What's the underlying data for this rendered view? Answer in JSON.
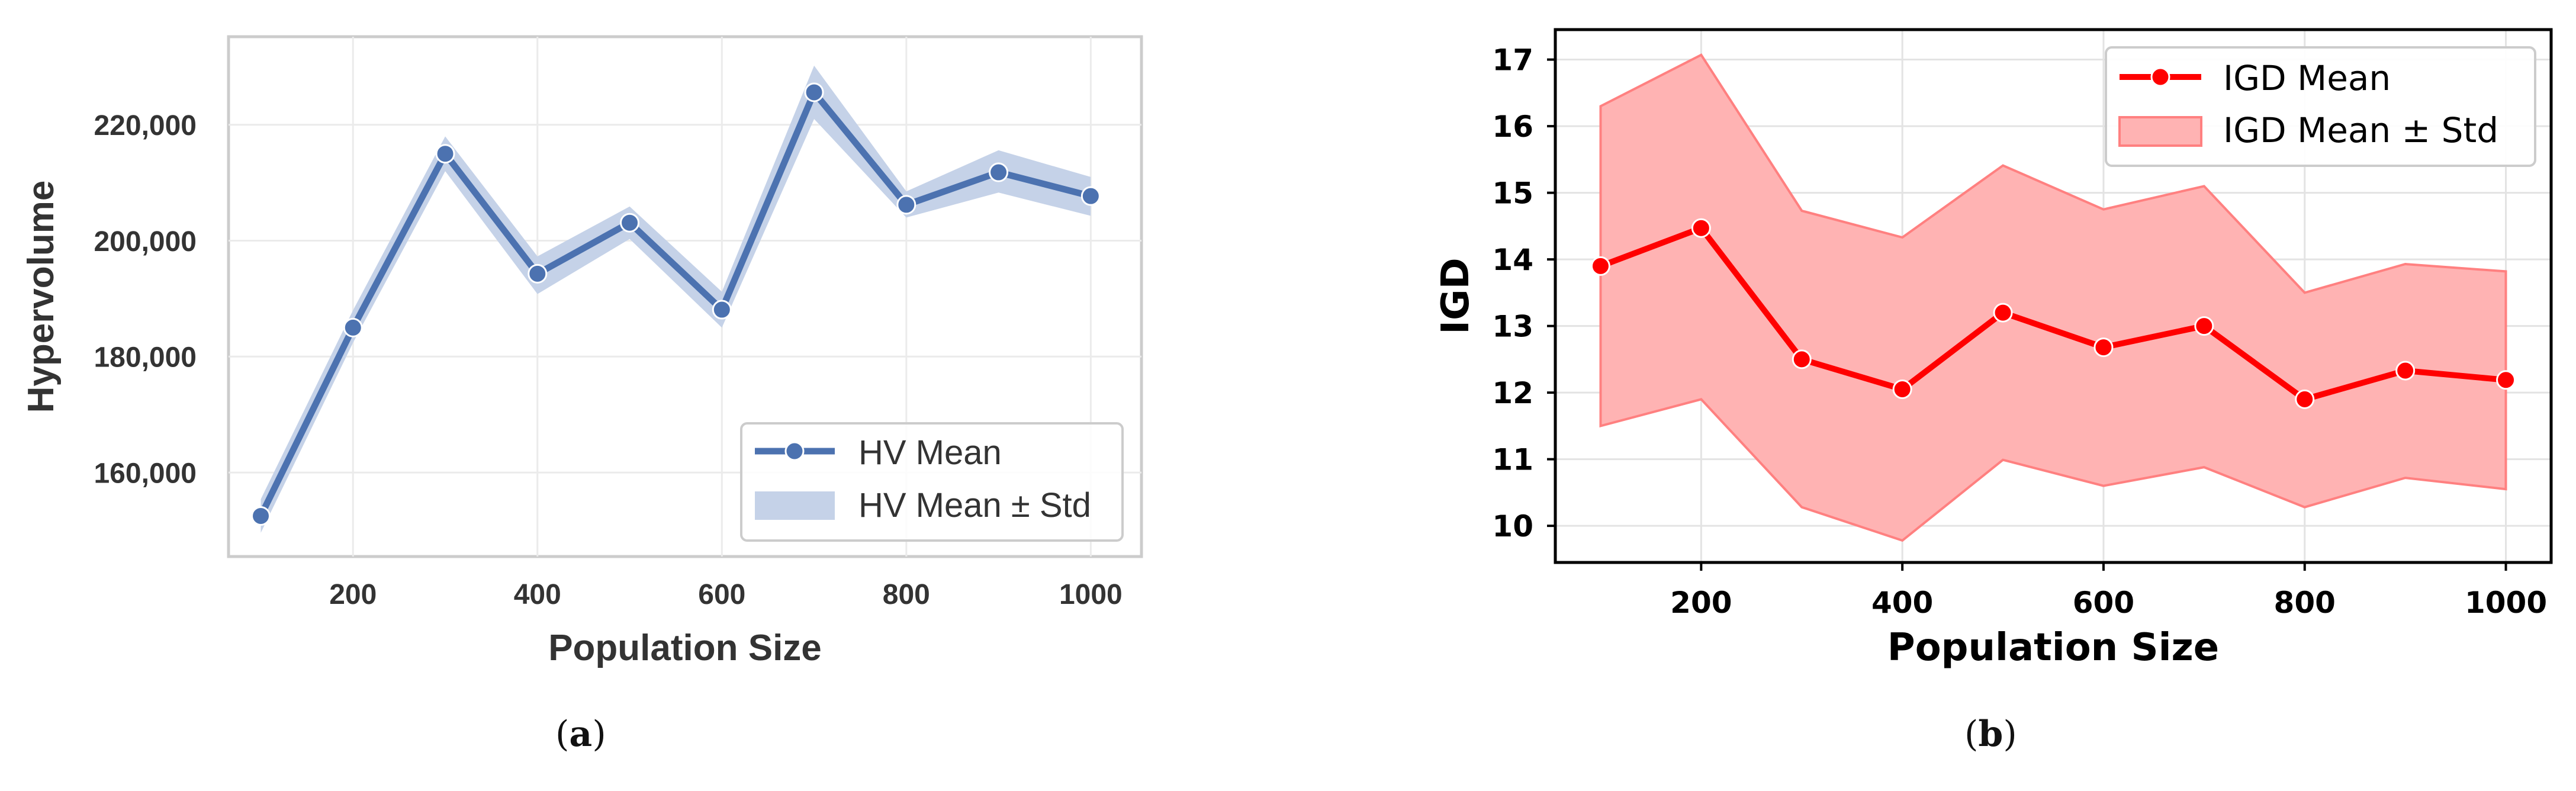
{
  "chart_data": [
    {
      "type": "line",
      "caption": "(a)",
      "xlabel": "Population Size",
      "ylabel": "Hypervolume",
      "x": [
        100,
        200,
        300,
        400,
        500,
        600,
        700,
        800,
        900,
        1000
      ],
      "xticks": [
        200,
        400,
        600,
        800,
        1000
      ],
      "xtick_labels": [
        "200",
        "400",
        "600",
        "800",
        "1000"
      ],
      "xlim": [
        65,
        1055
      ],
      "ylim": [
        145500,
        235200
      ],
      "yticks": [
        160000,
        180000,
        200000,
        220000
      ],
      "ytick_labels": [
        "160,000",
        "180,000",
        "200,000",
        "220,000"
      ],
      "grid": true,
      "legend_position": "lower-right",
      "series": [
        {
          "name": "HV Mean",
          "values": [
            152500,
            185000,
            215000,
            194300,
            203100,
            188100,
            225600,
            206200,
            211800,
            207700
          ],
          "color": "#4c72b0",
          "band_name": "HV Mean ± Std",
          "band_lower": [
            149600,
            182400,
            212000,
            190800,
            200300,
            185000,
            221000,
            204000,
            208300,
            204300
          ],
          "band_upper": [
            155400,
            188000,
            218000,
            197300,
            205900,
            191200,
            230200,
            208500,
            215600,
            211000
          ],
          "band_color": "#c5d2e8"
        }
      ]
    },
    {
      "type": "line",
      "caption": "(b)",
      "xlabel": "Population Size",
      "ylabel": "IGD",
      "x": [
        100,
        200,
        300,
        400,
        500,
        600,
        700,
        800,
        900,
        1000
      ],
      "xticks": [
        200,
        400,
        600,
        800,
        1000
      ],
      "xtick_labels": [
        "200",
        "400",
        "600",
        "800",
        "1000"
      ],
      "xlim": [
        55,
        1045
      ],
      "ylim": [
        9.45,
        17.45
      ],
      "yticks": [
        10,
        11,
        12,
        13,
        14,
        15,
        16,
        17
      ],
      "ytick_labels": [
        "10",
        "11",
        "12",
        "13",
        "14",
        "15",
        "16",
        "17"
      ],
      "grid": true,
      "legend_position": "upper-right",
      "series": [
        {
          "name": "IGD Mean",
          "values": [
            13.9,
            14.47,
            12.5,
            12.05,
            13.2,
            12.68,
            13.0,
            11.9,
            12.33,
            12.19
          ],
          "color": "#ff0000",
          "band_name": "IGD Mean ± Std",
          "band_lower": [
            11.5,
            11.9,
            10.28,
            9.78,
            10.99,
            10.6,
            10.88,
            10.28,
            10.72,
            10.55
          ],
          "band_upper": [
            16.3,
            17.07,
            14.73,
            14.33,
            15.41,
            14.75,
            15.1,
            13.5,
            13.93,
            13.82
          ],
          "band_color": "#ffb3b3"
        }
      ]
    }
  ]
}
